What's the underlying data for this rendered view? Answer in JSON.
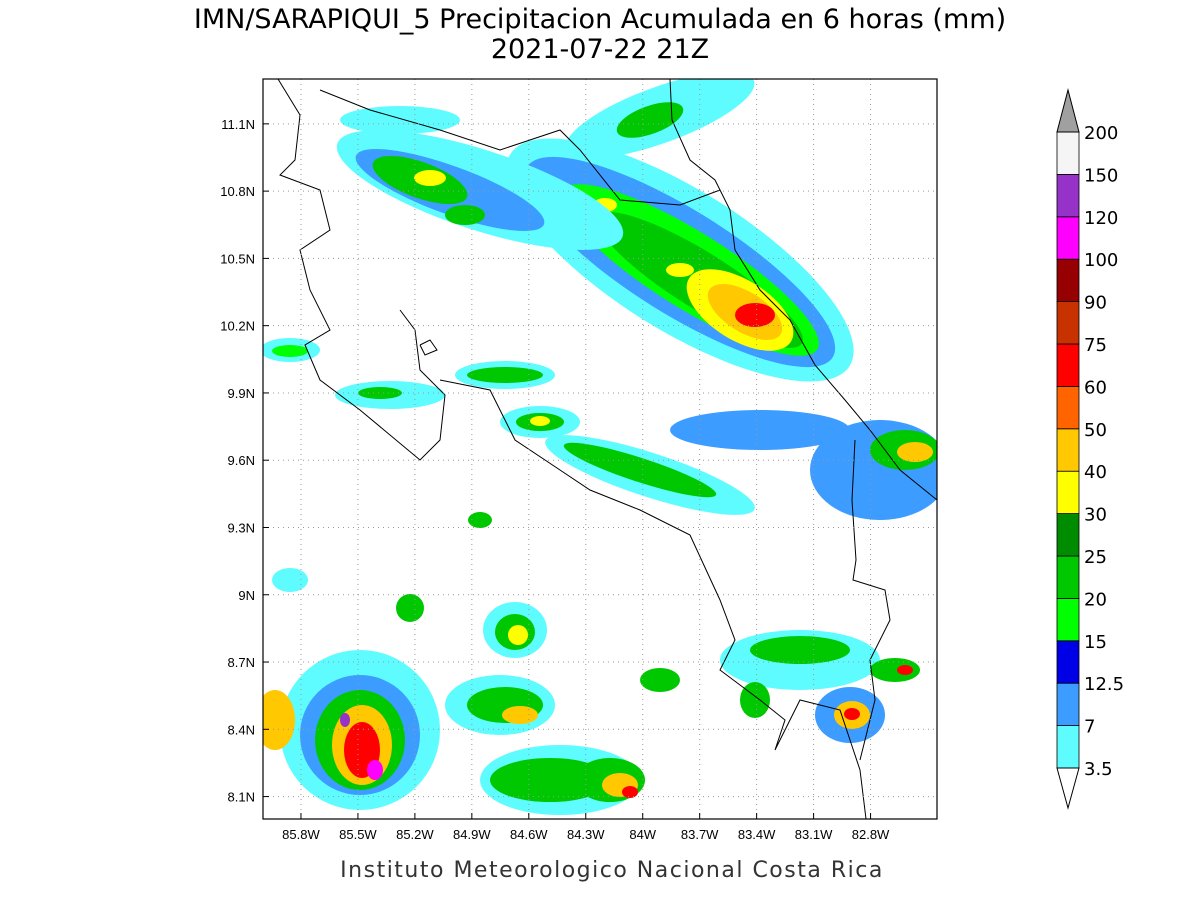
{
  "title": "IMN/SARAPIQUI_5 Precipitacion Acumulada en 6 horas (mm)",
  "subtitle": "2021-07-22 21Z",
  "footer": "Instituto Meteorologico Nacional Costa Rica",
  "map": {
    "lonlim": [
      -86.0,
      -82.45
    ],
    "latlim": [
      8.0,
      11.3
    ],
    "grid": true,
    "lon_ticks": [
      {
        "value": -85.8,
        "label": "85.8W"
      },
      {
        "value": -85.5,
        "label": "85.5W"
      },
      {
        "value": -85.2,
        "label": "85.2W"
      },
      {
        "value": -84.9,
        "label": "84.9W"
      },
      {
        "value": -84.6,
        "label": "84.6W"
      },
      {
        "value": -84.3,
        "label": "84.3W"
      },
      {
        "value": -84.0,
        "label": "84W"
      },
      {
        "value": -83.7,
        "label": "83.7W"
      },
      {
        "value": -83.4,
        "label": "83.4W"
      },
      {
        "value": -83.1,
        "label": "83.1W"
      },
      {
        "value": -82.8,
        "label": "82.8W"
      }
    ],
    "lat_ticks": [
      {
        "value": 11.1,
        "label": "11.1N"
      },
      {
        "value": 10.8,
        "label": "10.8N"
      },
      {
        "value": 10.5,
        "label": "10.5N"
      },
      {
        "value": 10.2,
        "label": "10.2N"
      },
      {
        "value": 9.9,
        "label": "9.9N"
      },
      {
        "value": 9.6,
        "label": "9.6N"
      },
      {
        "value": 9.3,
        "label": "9.3N"
      },
      {
        "value": 9.0,
        "label": "9N"
      },
      {
        "value": 8.7,
        "label": "8.7N"
      },
      {
        "value": 8.4,
        "label": "8.4N"
      },
      {
        "value": 8.1,
        "label": "8.1N"
      }
    ]
  },
  "colorbar": {
    "levels": [
      3.5,
      7,
      12.5,
      15,
      20,
      25,
      30,
      40,
      50,
      60,
      75,
      90,
      100,
      120,
      150,
      200
    ],
    "colors": [
      "#5ffcff",
      "#3c9cff",
      "#0000e6",
      "#00ff00",
      "#00c800",
      "#008c00",
      "#ffff00",
      "#ffc800",
      "#ff6400",
      "#ff0000",
      "#c83200",
      "#960000",
      "#ff00ff",
      "#9632c8",
      "#f5f5f5"
    ],
    "under_color": "#ffffff",
    "over_color": "#a0a0a0"
  }
}
